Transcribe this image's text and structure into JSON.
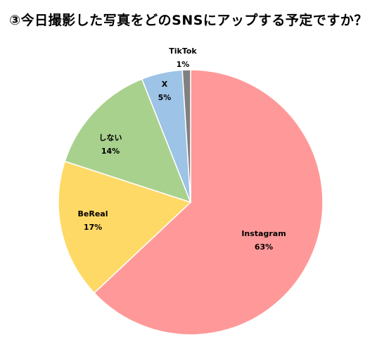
{
  "chart_data": {
    "type": "pie",
    "title": "③今日撮影した写真をどのSNSにアップする予定ですか？",
    "series": [
      {
        "label": "Instagram",
        "value": 63,
        "value_label": "63%",
        "color": "#FF9999"
      },
      {
        "label": "BeReal",
        "value": 17,
        "value_label": "17%",
        "color": "#FFD966"
      },
      {
        "label": "しない",
        "value": 14,
        "value_label": "14%",
        "color": "#A9D18E"
      },
      {
        "label": "X",
        "value": 5,
        "value_label": "5%",
        "color": "#9DC3E6"
      },
      {
        "label": "TikTok",
        "value": 1,
        "value_label": "1%",
        "color": "#808080"
      }
    ],
    "labels_inside": true,
    "legend": "none"
  }
}
